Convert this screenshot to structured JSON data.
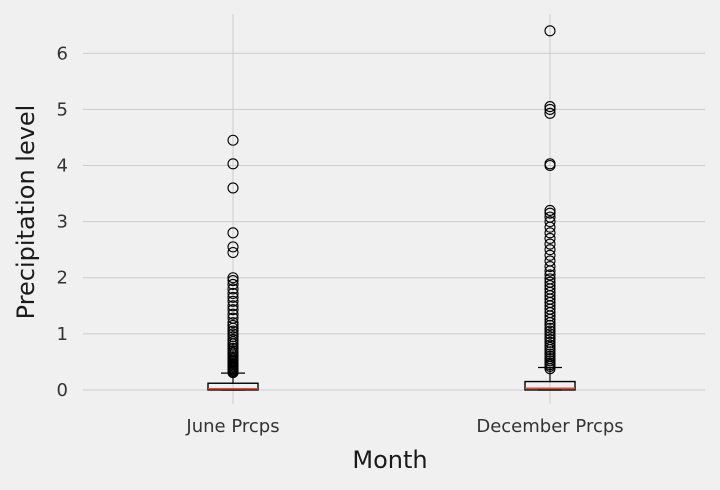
{
  "chart_data": {
    "type": "box",
    "title": "",
    "xlabel": "Month",
    "ylabel": "Precipitation level",
    "categories": [
      "June Prcps",
      "December Prcps"
    ],
    "ylim": [
      -0.25,
      6.7
    ],
    "yticks": [
      0,
      1,
      2,
      3,
      4,
      5,
      6
    ],
    "grid": true,
    "colors": {
      "background": "#f0f0f0",
      "grid": "#cbcbcb",
      "box": "#000000",
      "median": "#e24a33",
      "flier": "#000000"
    },
    "boxes": [
      {
        "name": "June Prcps",
        "whisker_low": 0.0,
        "q1": 0.0,
        "median": 0.02,
        "q3": 0.12,
        "whisker_high": 0.3,
        "fliers": [
          0.31,
          0.33,
          0.35,
          0.37,
          0.39,
          0.41,
          0.43,
          0.45,
          0.47,
          0.5,
          0.52,
          0.55,
          0.58,
          0.61,
          0.64,
          0.67,
          0.7,
          0.74,
          0.78,
          0.82,
          0.86,
          0.9,
          0.95,
          1.0,
          1.05,
          1.1,
          1.15,
          1.2,
          1.28,
          1.35,
          1.43,
          1.5,
          1.58,
          1.65,
          1.72,
          1.8,
          1.88,
          1.95,
          2.0,
          2.45,
          2.55,
          2.8,
          3.6,
          4.03,
          4.45
        ]
      },
      {
        "name": "December Prcps",
        "whisker_low": 0.0,
        "q1": 0.0,
        "median": 0.03,
        "q3": 0.15,
        "whisker_high": 0.4,
        "fliers": [
          0.38,
          0.42,
          0.45,
          0.48,
          0.52,
          0.56,
          0.6,
          0.64,
          0.68,
          0.72,
          0.76,
          0.8,
          0.85,
          0.9,
          0.95,
          1.0,
          1.05,
          1.1,
          1.15,
          1.2,
          1.26,
          1.32,
          1.38,
          1.44,
          1.5,
          1.56,
          1.62,
          1.68,
          1.74,
          1.8,
          1.86,
          1.92,
          1.98,
          2.05,
          2.12,
          2.2,
          2.3,
          2.4,
          2.5,
          2.6,
          2.7,
          2.8,
          2.9,
          3.0,
          3.08,
          3.15,
          3.2,
          4.0,
          4.03,
          4.93,
          5.0,
          5.05,
          6.4
        ]
      }
    ]
  }
}
